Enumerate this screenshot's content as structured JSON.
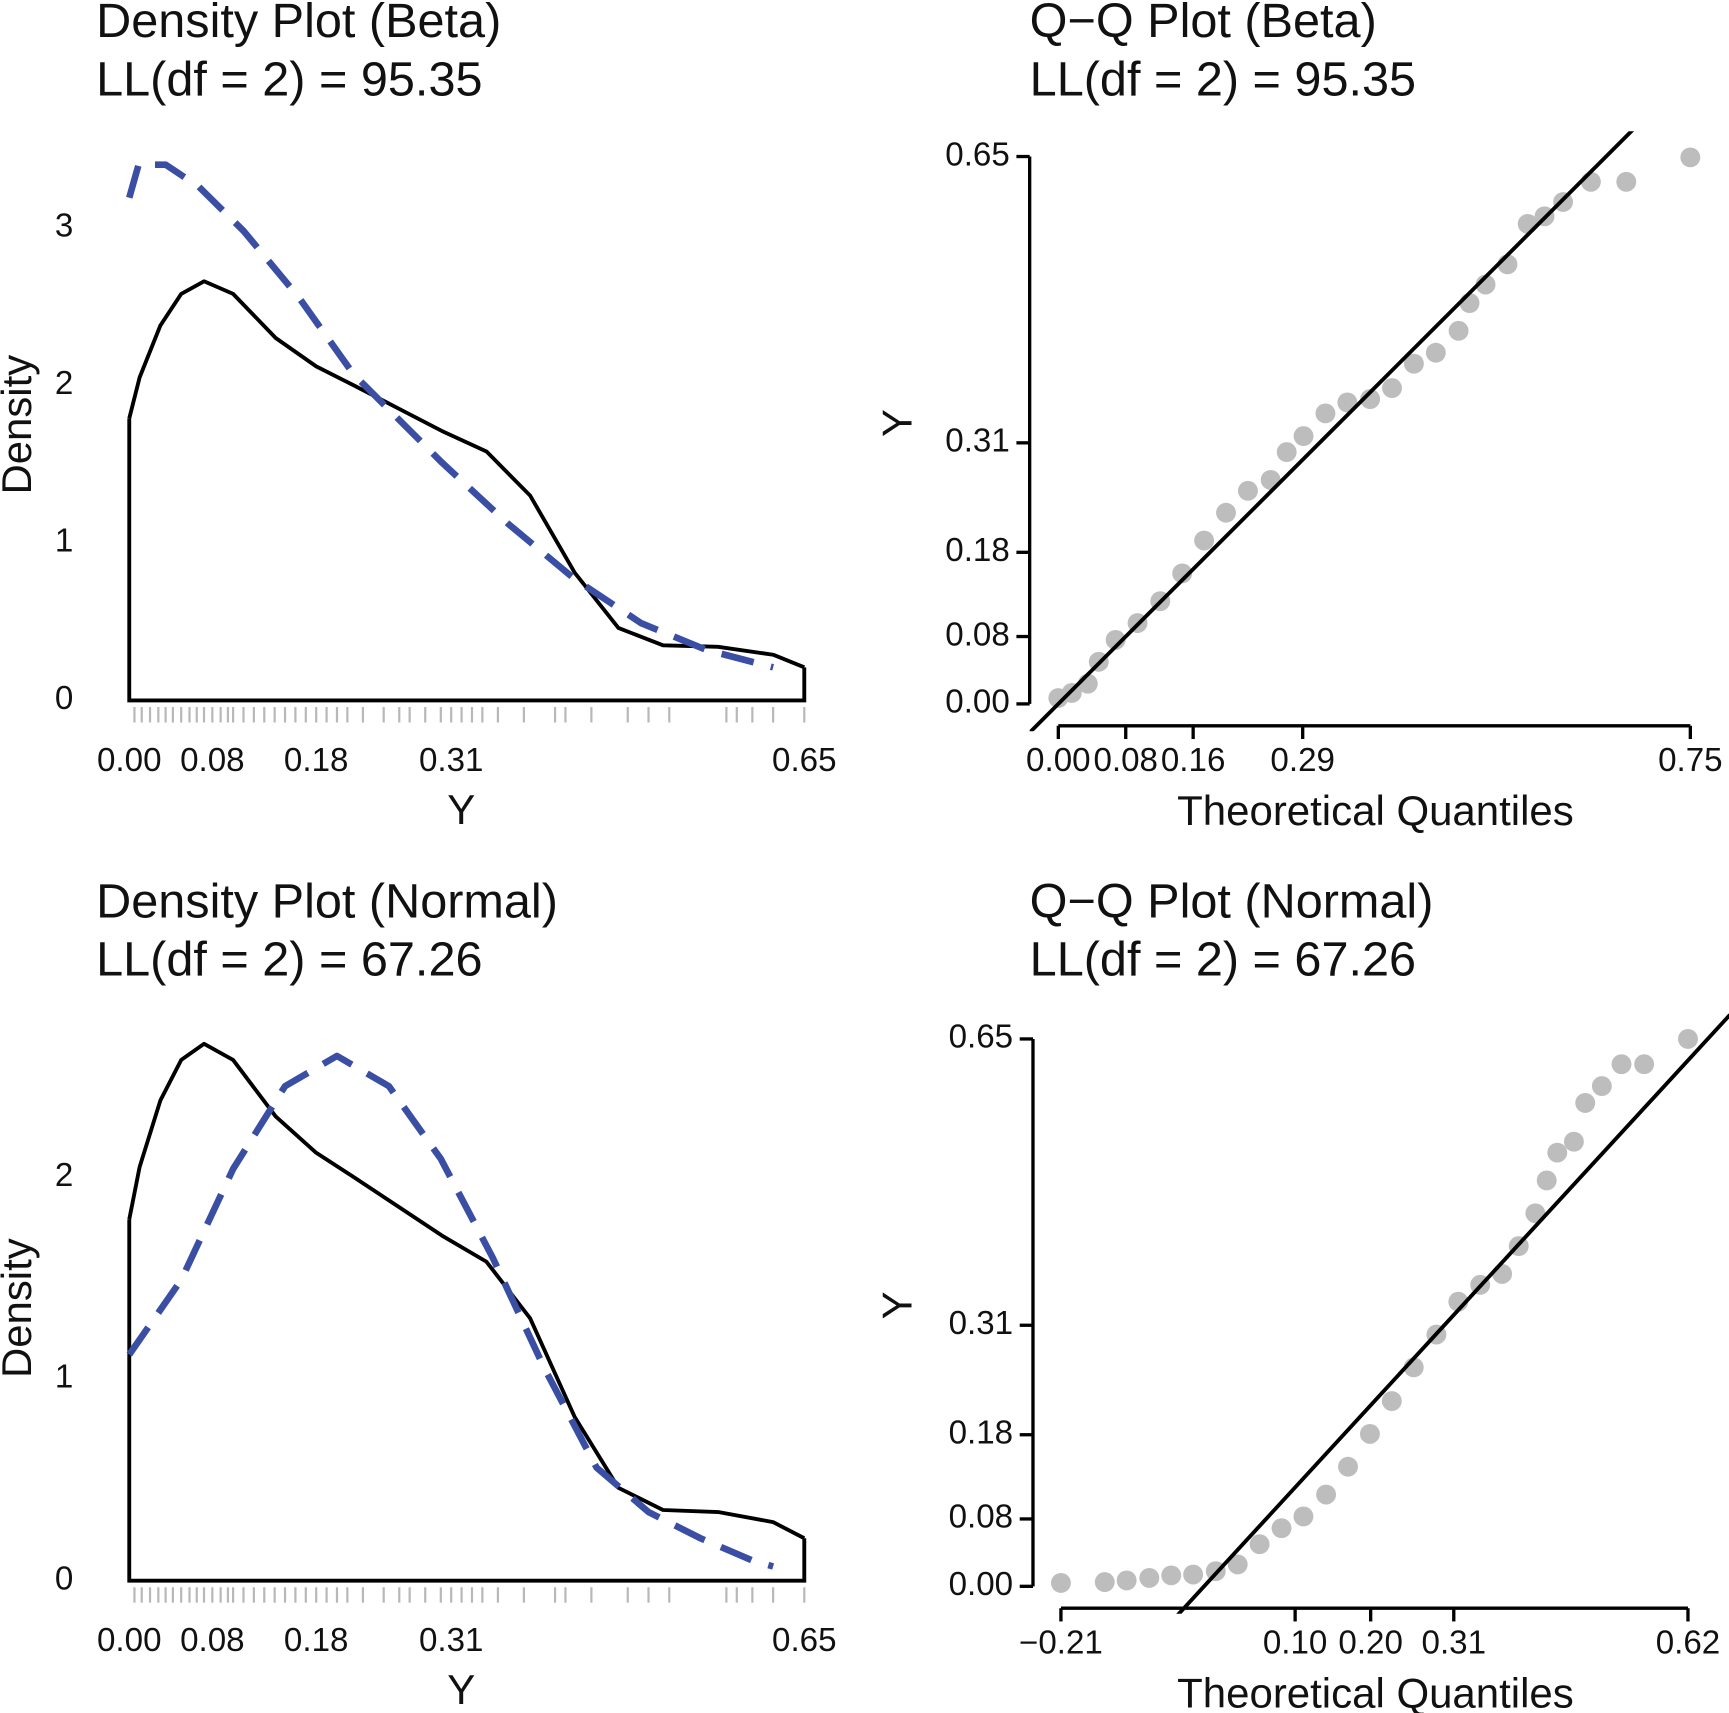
{
  "chart_data": [
    {
      "type": "density",
      "title": "Density Plot (Beta)",
      "subtitle": "LL(df = 2) = 95.35",
      "xlabel": "Y",
      "ylabel": "Density",
      "xlim": [
        0,
        0.65
      ],
      "ylim": [
        0,
        3.5
      ],
      "xticks": [
        {
          "value": 0,
          "label": "0.00"
        },
        0.08,
        0.18,
        0.31,
        0.65
      ],
      "yticks": [
        0,
        1,
        2,
        3
      ],
      "series": [
        {
          "color": "#000000",
          "x": [
            0,
            0.01,
            0.03,
            0.05,
            0.072,
            0.1,
            0.141,
            0.18,
            0.216,
            0.26,
            0.301,
            0.344,
            0.386,
            0.429,
            0.471,
            0.514,
            0.567,
            0.62,
            0.65
          ],
          "values": [
            1.79,
            2.05,
            2.38,
            2.58,
            2.66,
            2.58,
            2.3,
            2.12,
            2.0,
            1.85,
            1.71,
            1.58,
            1.3,
            0.81,
            0.46,
            0.35,
            0.34,
            0.29,
            0.21
          ]
        },
        {
          "color": "#3a4ea3",
          "linestyle": "dashed",
          "x": [
            0,
            0.009,
            0.035,
            0.067,
            0.11,
            0.163,
            0.216,
            0.301,
            0.365,
            0.429,
            0.493,
            0.556,
            0.62
          ],
          "values": [
            3.19,
            3.4,
            3.4,
            3.26,
            2.98,
            2.56,
            2.07,
            1.51,
            1.12,
            0.77,
            0.49,
            0.32,
            0.21
          ]
        }
      ],
      "rug": [
        0.005,
        0.012,
        0.02,
        0.028,
        0.035,
        0.042,
        0.05,
        0.058,
        0.065,
        0.072,
        0.08,
        0.088,
        0.095,
        0.1,
        0.11,
        0.12,
        0.13,
        0.14,
        0.15,
        0.16,
        0.17,
        0.18,
        0.19,
        0.2,
        0.21,
        0.225,
        0.245,
        0.26,
        0.27,
        0.285,
        0.3,
        0.31,
        0.32,
        0.33,
        0.34,
        0.355,
        0.38,
        0.41,
        0.42,
        0.445,
        0.48,
        0.5,
        0.52,
        0.575,
        0.585,
        0.6,
        0.62,
        0.65
      ],
      "rug_color": "#b8b8b8"
    },
    {
      "type": "qq",
      "title": "Q−Q Plot (Beta)",
      "subtitle": "LL(df = 2) = 95.35",
      "xlabel": "Theoretical Quantiles",
      "ylabel": "Y",
      "xlim": [
        -0.034,
        0.75
      ],
      "ylim": [
        -0.026,
        0.68
      ],
      "xticks": [
        {
          "value": 0,
          "label": "0.00"
        },
        0.08,
        0.16,
        0.29,
        0.75
      ],
      "yticks": [
        {
          "value": 0,
          "label": "0.00"
        },
        0.08,
        0.18,
        0.31,
        0.65
      ],
      "x": [
        0,
        0.016,
        0.035,
        0.048,
        0.068,
        0.094,
        0.121,
        0.147,
        0.173,
        0.199,
        0.225,
        0.252,
        0.271,
        0.291,
        0.317,
        0.343,
        0.37,
        0.396,
        0.422,
        0.448,
        0.475,
        0.488,
        0.507,
        0.533,
        0.557,
        0.577,
        0.599,
        0.632,
        0.674,
        0.75
      ],
      "values": [
        0.007,
        0.013,
        0.024,
        0.05,
        0.076,
        0.096,
        0.122,
        0.155,
        0.194,
        0.227,
        0.253,
        0.266,
        0.299,
        0.318,
        0.345,
        0.358,
        0.362,
        0.375,
        0.404,
        0.417,
        0.443,
        0.476,
        0.498,
        0.522,
        0.57,
        0.579,
        0.596,
        0.62,
        0.62,
        0.649
      ],
      "color": "#bdbdbd",
      "reference_line": {
        "intercept": 0,
        "slope": 1,
        "color": "#000000"
      }
    },
    {
      "type": "density",
      "title": "Density Plot (Normal)",
      "subtitle": "LL(df = 2) = 67.26",
      "xlabel": "Y",
      "ylabel": "Density",
      "xlim": [
        0,
        0.65
      ],
      "ylim": [
        0,
        2.7
      ],
      "xticks": [
        {
          "value": 0,
          "label": "0.00"
        },
        0.08,
        0.18,
        0.31,
        0.65
      ],
      "yticks": [
        0,
        1,
        2
      ],
      "series": [
        {
          "color": "#000000",
          "x": [
            0,
            0.01,
            0.03,
            0.05,
            0.072,
            0.1,
            0.141,
            0.18,
            0.216,
            0.26,
            0.301,
            0.344,
            0.386,
            0.429,
            0.471,
            0.514,
            0.567,
            0.62,
            0.65
          ],
          "values": [
            1.79,
            2.05,
            2.38,
            2.58,
            2.66,
            2.58,
            2.3,
            2.12,
            2.0,
            1.85,
            1.71,
            1.58,
            1.3,
            0.81,
            0.46,
            0.35,
            0.34,
            0.29,
            0.21
          ]
        },
        {
          "color": "#3a4ea3",
          "linestyle": "dashed",
          "x": [
            0,
            0.05,
            0.1,
            0.15,
            0.2,
            0.25,
            0.3,
            0.35,
            0.4,
            0.45,
            0.5,
            0.55,
            0.6,
            0.62
          ],
          "values": [
            1.12,
            1.49,
            2.04,
            2.45,
            2.6,
            2.45,
            2.09,
            1.6,
            1.05,
            0.56,
            0.34,
            0.21,
            0.1,
            0.07
          ]
        }
      ],
      "rug": [
        0.005,
        0.012,
        0.02,
        0.028,
        0.035,
        0.042,
        0.05,
        0.058,
        0.065,
        0.072,
        0.08,
        0.088,
        0.095,
        0.1,
        0.11,
        0.12,
        0.13,
        0.14,
        0.15,
        0.16,
        0.17,
        0.18,
        0.19,
        0.2,
        0.21,
        0.225,
        0.245,
        0.26,
        0.27,
        0.285,
        0.3,
        0.31,
        0.32,
        0.33,
        0.34,
        0.355,
        0.38,
        0.41,
        0.42,
        0.445,
        0.48,
        0.5,
        0.52,
        0.575,
        0.585,
        0.6,
        0.62,
        0.65
      ],
      "rug_color": "#b8b8b8"
    },
    {
      "type": "qq",
      "title": "Q−Q Plot (Normal)",
      "subtitle": "LL(df = 2) = 67.26",
      "xlabel": "Theoretical Quantiles",
      "ylabel": "Y",
      "xlim": [
        -0.247,
        0.667
      ],
      "ylim": [
        -0.026,
        0.68
      ],
      "xticks": [
        {
          "value": -0.21,
          "label": "−0.21"
        },
        {
          "value": 0.1,
          "label": "0.10"
        },
        {
          "value": 0.2,
          "label": "0.20"
        },
        0.31,
        0.62
      ],
      "yticks": [
        {
          "value": 0,
          "label": "0.00"
        },
        0.08,
        0.18,
        0.31,
        0.65
      ],
      "x": [
        -0.21,
        -0.152,
        -0.123,
        -0.093,
        -0.064,
        -0.035,
        -0.005,
        0.024,
        0.053,
        0.082,
        0.111,
        0.141,
        0.17,
        0.199,
        0.228,
        0.257,
        0.287,
        0.316,
        0.345,
        0.374,
        0.396,
        0.418,
        0.433,
        0.447,
        0.469,
        0.484,
        0.506,
        0.532,
        0.562,
        0.62
      ],
      "values": [
        0.004,
        0.005,
        0.007,
        0.01,
        0.013,
        0.014,
        0.018,
        0.026,
        0.05,
        0.069,
        0.083,
        0.109,
        0.142,
        0.181,
        0.22,
        0.26,
        0.299,
        0.338,
        0.358,
        0.371,
        0.404,
        0.443,
        0.482,
        0.515,
        0.528,
        0.574,
        0.594,
        0.62,
        0.62,
        0.65
      ],
      "color": "#bdbdbd",
      "reference_line": {
        "intercept": 0.02,
        "slope": 0.975,
        "color": "#000000"
      }
    }
  ]
}
